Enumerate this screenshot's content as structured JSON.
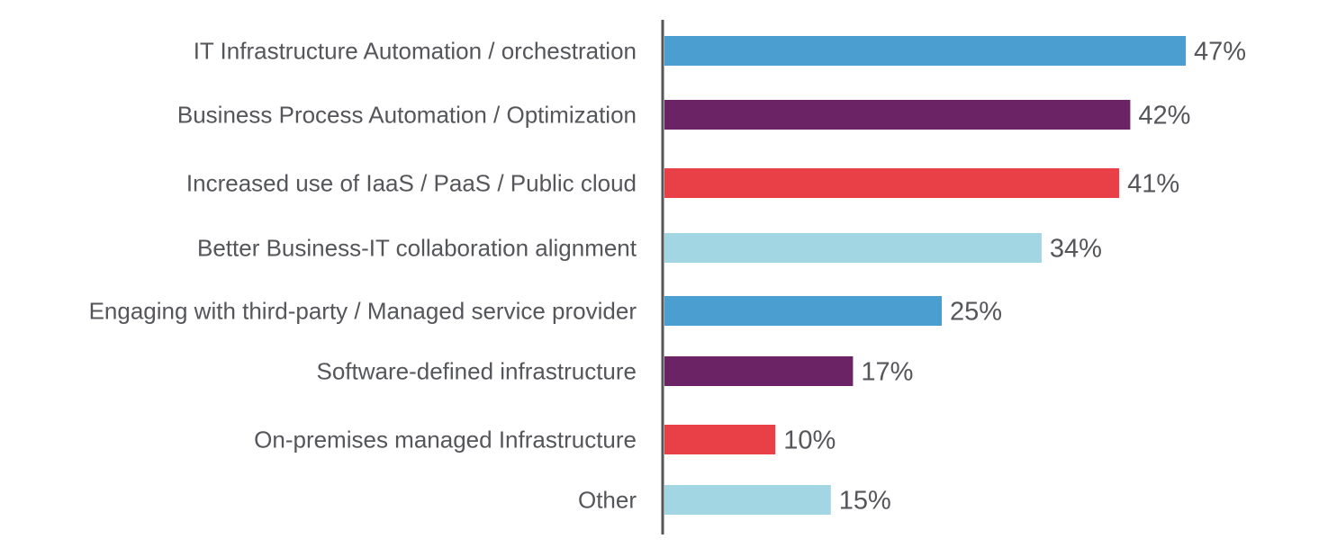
{
  "chart_data": {
    "type": "bar",
    "orientation": "horizontal",
    "title": "",
    "xlabel": "",
    "ylabel": "",
    "grid": false,
    "legend": "none",
    "xlim": [
      0,
      50
    ],
    "value_suffix": "%",
    "categories": [
      "IT Infrastructure Automation / orchestration",
      "Business Process Automation / Optimization",
      "Increased use of IaaS / PaaS / Public cloud",
      "Better Business-IT collaboration alignment",
      "Engaging with third-party / Managed service provider",
      "Software-defined infrastructure",
      "On-premises managed Infrastructure",
      "Other"
    ],
    "values": [
      47,
      42,
      41,
      34,
      25,
      17,
      10,
      15
    ],
    "value_labels": [
      "47%",
      "42%",
      "41%",
      "34%",
      "25%",
      "17%",
      "10%",
      "15%"
    ],
    "bar_colors": [
      "#4b9fd0",
      "#6b2366",
      "#e84046",
      "#a2d6e2",
      "#4b9fd0",
      "#6b2366",
      "#e84046",
      "#a2d6e2"
    ],
    "axis_color": "#55565a",
    "text_color": "#55565a"
  }
}
